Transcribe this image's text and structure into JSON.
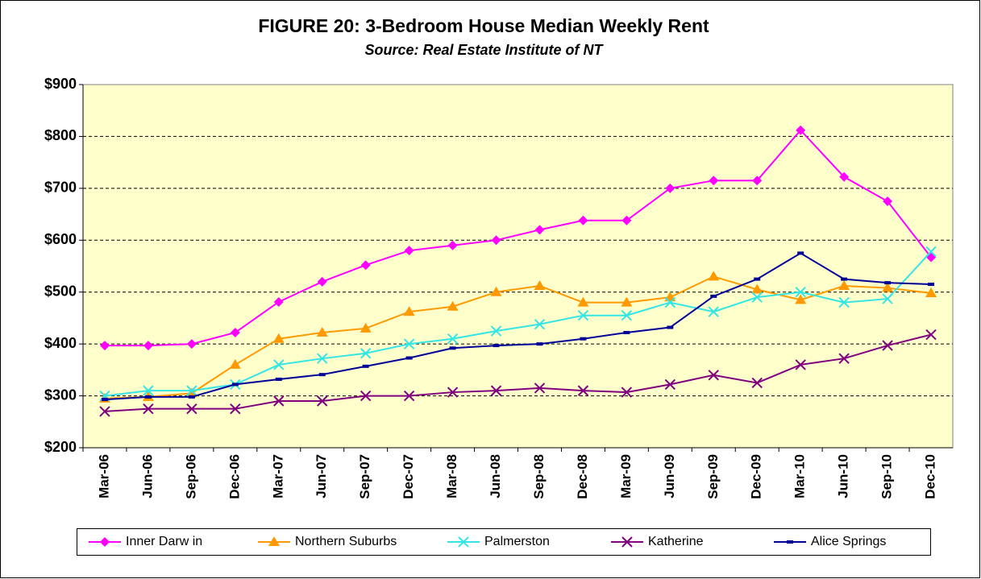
{
  "chart_data": {
    "type": "line",
    "title": "FIGURE 20: 3-Bedroom House Median Weekly Rent",
    "subtitle": "Source: Real Estate Institute of NT",
    "categories": [
      "Mar-06",
      "Jun-06",
      "Sep-06",
      "Dec-06",
      "Mar-07",
      "Jun-07",
      "Sep-07",
      "Dec-07",
      "Mar-08",
      "Jun-08",
      "Sep-08",
      "Dec-08",
      "Mar-09",
      "Jun-09",
      "Sep-09",
      "Dec-09",
      "Mar-10",
      "Jun-10",
      "Sep-10",
      "Dec-10"
    ],
    "series": [
      {
        "name": "Inner Darw in",
        "color": "#ff00ff",
        "marker": "diamond",
        "values": [
          397,
          397,
          400,
          422,
          481,
          520,
          552,
          580,
          590,
          600,
          620,
          638,
          638,
          700,
          715,
          715,
          812,
          722,
          675,
          567
        ]
      },
      {
        "name": "Northern Suburbs",
        "color": "#ff9900",
        "marker": "triangle",
        "values": [
          295,
          298,
          305,
          360,
          410,
          422,
          430,
          462,
          472,
          500,
          512,
          480,
          480,
          490,
          530,
          505,
          485,
          512,
          508,
          498
        ]
      },
      {
        "name": "Palmerston",
        "color": "#33e5e5",
        "marker": "x",
        "values": [
          300,
          310,
          310,
          322,
          360,
          372,
          382,
          400,
          410,
          425,
          438,
          455,
          455,
          480,
          462,
          490,
          500,
          480,
          487,
          578
        ]
      },
      {
        "name": "Katherine",
        "color": "#800080",
        "marker": "x",
        "values": [
          270,
          275,
          275,
          275,
          290,
          290,
          300,
          300,
          307,
          310,
          315,
          310,
          307,
          322,
          340,
          325,
          360,
          372,
          397,
          418
        ]
      },
      {
        "name": "Alice Springs",
        "color": "#000099",
        "marker": "dash",
        "values": [
          293,
          298,
          298,
          322,
          332,
          341,
          357,
          373,
          392,
          397,
          400,
          410,
          422,
          432,
          492,
          525,
          575,
          525,
          518,
          515
        ]
      }
    ],
    "ylim": [
      200,
      900
    ],
    "yticks": [
      {
        "value": 200,
        "label": "$200"
      },
      {
        "value": 300,
        "label": "$300"
      },
      {
        "value": 400,
        "label": "$400"
      },
      {
        "value": 500,
        "label": "$500"
      },
      {
        "value": 600,
        "label": "$600"
      },
      {
        "value": 700,
        "label": "$700"
      },
      {
        "value": 800,
        "label": "$800"
      },
      {
        "value": 900,
        "label": "$900"
      }
    ],
    "grid": true,
    "legend": "bottom",
    "plot_background": "#ffffcc"
  }
}
